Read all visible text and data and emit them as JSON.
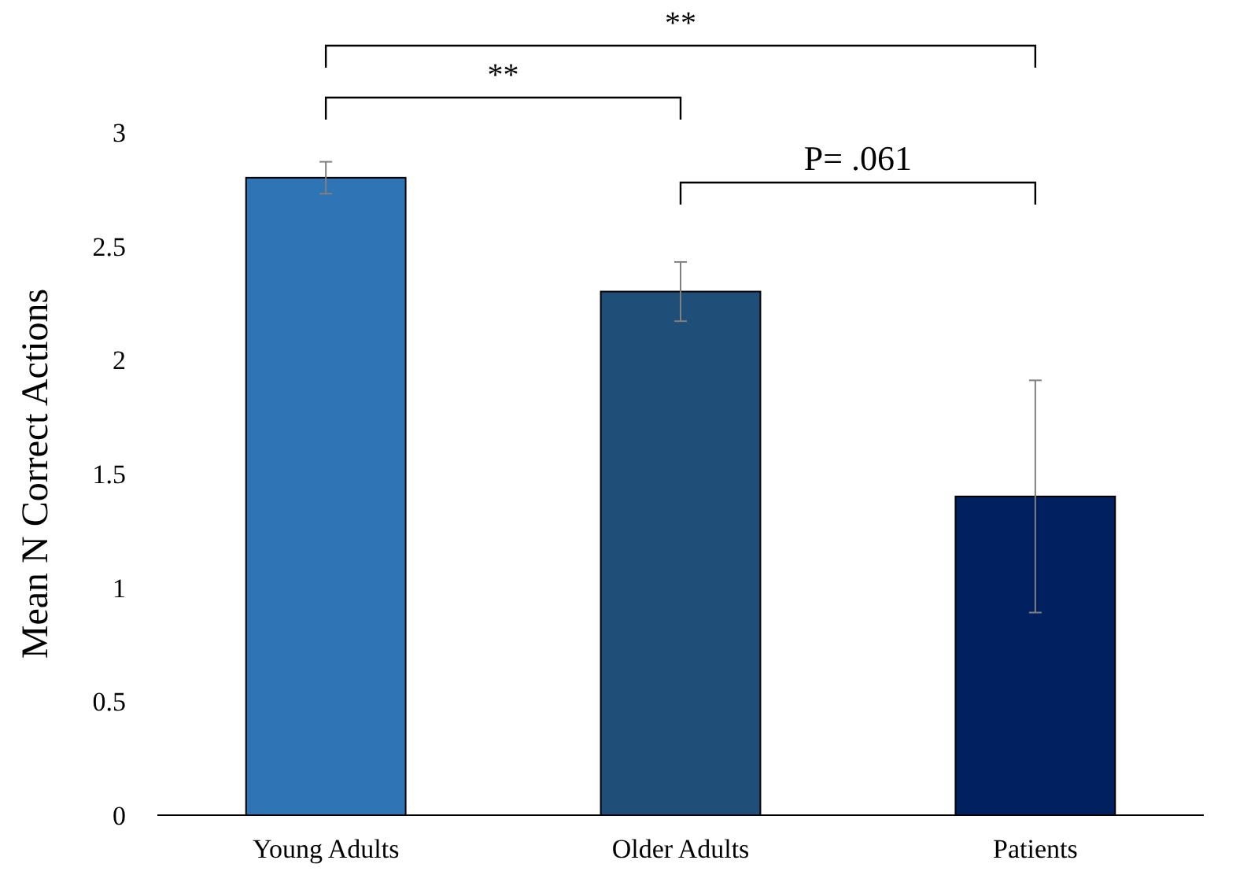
{
  "chart_data": {
    "type": "bar",
    "ylabel": "Mean N Correct Actions",
    "categories": [
      "Young Adults",
      "Older Adults",
      "Patients"
    ],
    "values": [
      2.8,
      2.3,
      1.4
    ],
    "colors": [
      "#2e75b6",
      "#1f4e79",
      "#002060"
    ],
    "errors": [
      0.07,
      0.13,
      0.51
    ],
    "ylim": [
      0,
      3
    ],
    "yticks": [
      0,
      0.5,
      1,
      1.5,
      2,
      2.5,
      3
    ],
    "grid": false,
    "annotations": [
      "**",
      "**",
      "P= .061"
    ]
  }
}
